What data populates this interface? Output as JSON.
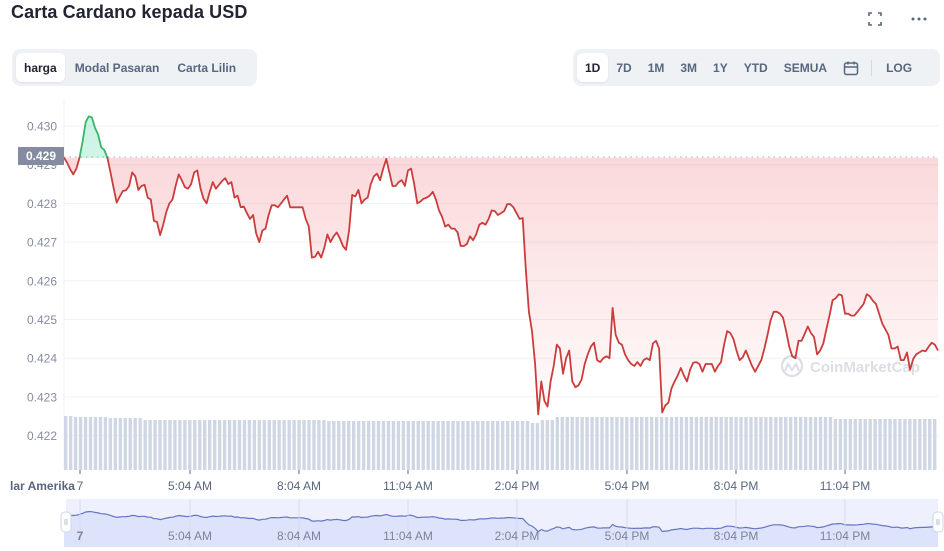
{
  "header": {
    "title": "Carta Cardano kepada USD",
    "fullscreen_icon": "fullscreen-icon",
    "more_icon": "more-horizontal-icon"
  },
  "chart_type_tabs": [
    {
      "label": "harga",
      "active": true
    },
    {
      "label": "Modal Pasaran",
      "active": false
    },
    {
      "label": "Carta Lilin",
      "active": false
    }
  ],
  "range_tabs": [
    {
      "label": "1D",
      "active": true
    },
    {
      "label": "7D",
      "active": false
    },
    {
      "label": "1M",
      "active": false
    },
    {
      "label": "3M",
      "active": false
    },
    {
      "label": "1Y",
      "active": false
    },
    {
      "label": "YTD",
      "active": false
    },
    {
      "label": "SEMUA",
      "active": false
    }
  ],
  "calendar_icon": "calendar-icon",
  "log_label": "LOG",
  "current_price_label": "0.429",
  "watermark": "CoinMarketCap",
  "currency_label": "lar Amerika",
  "colors": {
    "up": "#16c784",
    "up_line": "#3bb56a",
    "down_line": "#cc3c3c",
    "down_fill": "#ea3943",
    "volume": "#cfd6e4",
    "navigator_fill": "#dde3fb",
    "navigator_line": "#6675c1",
    "price_label_bg": "#858ca2",
    "axis_text": "#58667e",
    "grid": "#eff2f5"
  },
  "chart_data": {
    "type": "line",
    "title": "Carta Cardano kepada USD",
    "xlabel": "",
    "ylabel": "USD",
    "ylim": [
      0.4212,
      0.4305
    ],
    "y_ticks": [
      0.43,
      0.429,
      0.428,
      0.427,
      0.426,
      0.425,
      0.424,
      0.423,
      0.422
    ],
    "y_tick_labels": [
      "0.430",
      "0.429",
      "0.428",
      "0.427",
      "0.426",
      "0.425",
      "0.424",
      "0.423",
      "0.422"
    ],
    "x_tick_labels": [
      "7",
      "5:04 AM",
      "8:04 AM",
      "11:04 AM",
      "2:04 PM",
      "5:04 PM",
      "8:04 PM",
      "11:04 PM"
    ],
    "reference_price": 0.42918,
    "current_price": 0.429,
    "grid": true,
    "legend": "none",
    "series": [
      {
        "name": "harga",
        "note": "price points, evenly spaced over ~24h (x index 0..N-1)",
        "values": [
          0.42918,
          0.42905,
          0.42888,
          0.42875,
          0.4289,
          0.42918,
          0.4296,
          0.4301,
          0.43025,
          0.43022,
          0.42995,
          0.42978,
          0.42945,
          0.42938,
          0.42918,
          0.4288,
          0.4284,
          0.42802,
          0.42818,
          0.42832,
          0.42834,
          0.42845,
          0.4288,
          0.4287,
          0.42835,
          0.42845,
          0.42848,
          0.42815,
          0.4281,
          0.42755,
          0.42752,
          0.42718,
          0.42745,
          0.42778,
          0.428,
          0.4281,
          0.42845,
          0.42875,
          0.4286,
          0.42842,
          0.42838,
          0.4285,
          0.4288,
          0.42885,
          0.4284,
          0.42812,
          0.428,
          0.4283,
          0.42855,
          0.42838,
          0.42848,
          0.42858,
          0.42865,
          0.4285,
          0.42855,
          0.42815,
          0.4282,
          0.4279,
          0.42792,
          0.42775,
          0.4276,
          0.4277,
          0.42722,
          0.427,
          0.4273,
          0.42735,
          0.4277,
          0.42795,
          0.42795,
          0.4279,
          0.428,
          0.4281,
          0.4282,
          0.4279,
          0.4279,
          0.4279,
          0.4279,
          0.4279,
          0.4276,
          0.4274,
          0.4266,
          0.42662,
          0.42675,
          0.4266,
          0.42685,
          0.4272,
          0.427,
          0.42715,
          0.42725,
          0.4271,
          0.4269,
          0.4268,
          0.4273,
          0.42822,
          0.42818,
          0.42835,
          0.428,
          0.4281,
          0.42815,
          0.4285,
          0.4287,
          0.42877,
          0.4286,
          0.4289,
          0.42915,
          0.4288,
          0.42845,
          0.42845,
          0.42855,
          0.4286,
          0.42845,
          0.42885,
          0.4289,
          0.4285,
          0.428,
          0.42805,
          0.42812,
          0.42815,
          0.4282,
          0.4283,
          0.4281,
          0.42782,
          0.42765,
          0.4274,
          0.42745,
          0.42735,
          0.42735,
          0.42725,
          0.4269,
          0.4269,
          0.42695,
          0.42715,
          0.42705,
          0.4272,
          0.42745,
          0.4275,
          0.42745,
          0.4276,
          0.42782,
          0.4278,
          0.4277,
          0.42775,
          0.4278,
          0.42798,
          0.42798,
          0.4279,
          0.42775,
          0.4276,
          0.42762,
          0.4263,
          0.4252,
          0.4247,
          0.42385,
          0.42255,
          0.4234,
          0.4229,
          0.42275,
          0.4234,
          0.4238,
          0.42435,
          0.42425,
          0.4236,
          0.424,
          0.4242,
          0.4234,
          0.42325,
          0.4233,
          0.42345,
          0.42385,
          0.4241,
          0.4243,
          0.4244,
          0.42395,
          0.4239,
          0.424,
          0.42405,
          0.424,
          0.4253,
          0.4246,
          0.4244,
          0.42435,
          0.4241,
          0.42395,
          0.42385,
          0.4238,
          0.4239,
          0.4238,
          0.42395,
          0.424,
          0.42395,
          0.42438,
          0.42445,
          0.42425,
          0.4226,
          0.42278,
          0.42285,
          0.42322,
          0.4234,
          0.42355,
          0.42375,
          0.42355,
          0.4234,
          0.4237,
          0.42388,
          0.4239,
          0.42385,
          0.42365,
          0.42385,
          0.42385,
          0.42385,
          0.42365,
          0.4238,
          0.4239,
          0.42435,
          0.4247,
          0.42465,
          0.4245,
          0.4242,
          0.42395,
          0.42402,
          0.4242,
          0.424,
          0.4238,
          0.42365,
          0.4238,
          0.42395,
          0.42425,
          0.4246,
          0.42498,
          0.4252,
          0.4252,
          0.42515,
          0.42505,
          0.4247,
          0.4243,
          0.42405,
          0.424,
          0.42445,
          0.42445,
          0.42463,
          0.42482,
          0.42465,
          0.42455,
          0.4241,
          0.4242,
          0.42438,
          0.42475,
          0.4251,
          0.4255,
          0.42555,
          0.42565,
          0.42562,
          0.42515,
          0.42515,
          0.4251,
          0.4251,
          0.4252,
          0.4253,
          0.4254,
          0.42565,
          0.4256,
          0.42548,
          0.4254,
          0.42515,
          0.4249,
          0.42475,
          0.4246,
          0.42425,
          0.42425,
          0.4243,
          0.42395,
          0.42395,
          0.42415,
          0.4237,
          0.42398,
          0.4241,
          0.42415,
          0.4242,
          0.42418,
          0.4243,
          0.4244,
          0.42435,
          0.4242
        ]
      },
      {
        "name": "volume",
        "note": "relative bar height (0-1) of the grey volume columns",
        "values_summary": "roughly flat at ~0.52, slight dip mid-session, steps up to ~0.56 after 2:04 PM drop"
      }
    ]
  },
  "navigator": {
    "x_tick_labels": [
      "7",
      "5:04 AM",
      "8:04 AM",
      "11:04 AM",
      "2:04 PM",
      "5:04 PM",
      "8:04 PM",
      "11:04 PM"
    ],
    "left_handle_icon": "drag-handle-icon",
    "right_handle_icon": "drag-handle-icon"
  }
}
